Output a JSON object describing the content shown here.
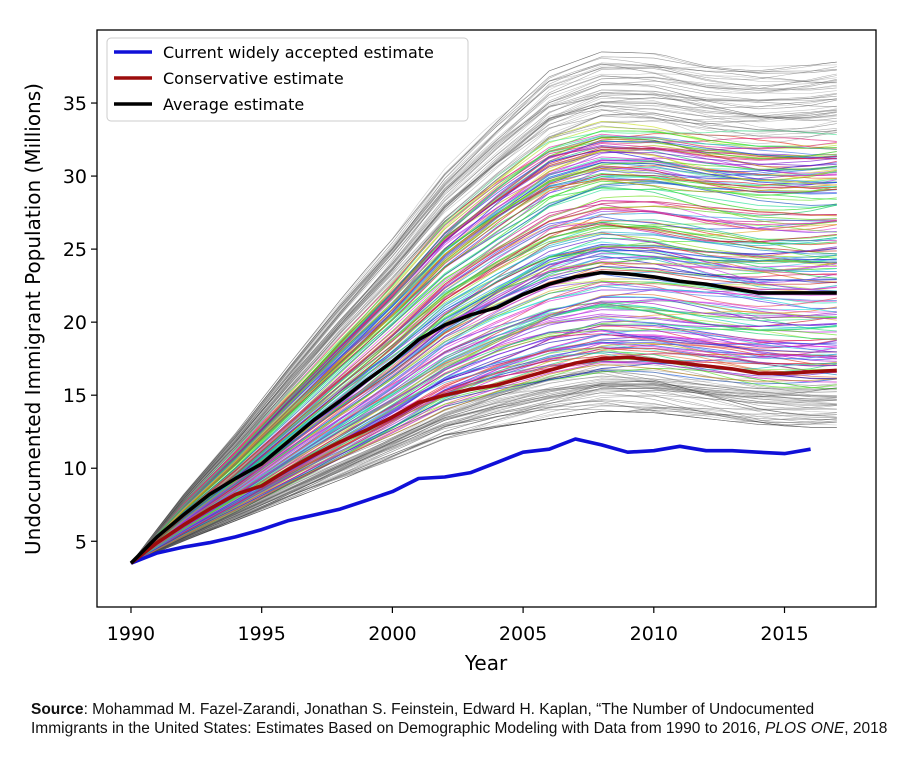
{
  "chart_data": {
    "type": "line",
    "xlabel": "Year",
    "ylabel": "Undocumented Immigrant Population (Millions)",
    "xlim": [
      1988.7,
      2018.5
    ],
    "ylim": [
      0.5,
      40
    ],
    "xticks": [
      1990,
      1995,
      2000,
      2005,
      2010,
      2015
    ],
    "yticks": [
      5,
      10,
      15,
      20,
      25,
      30,
      35
    ],
    "legend_position": "top-left",
    "grid": false,
    "simulation_band": {
      "description": "Hundreds of colored simulated trajectories",
      "x": [
        1990,
        1992,
        1994,
        1996,
        1998,
        2000,
        2002,
        2004,
        2006,
        2008,
        2010,
        2012,
        2014,
        2016,
        2017
      ],
      "lower": [
        3.5,
        5.0,
        6.4,
        7.8,
        9.2,
        10.6,
        12.0,
        12.8,
        13.4,
        13.9,
        13.8,
        13.4,
        13.0,
        12.8,
        12.8
      ],
      "upper": [
        3.5,
        8.2,
        12.4,
        17.0,
        21.5,
        25.8,
        30.5,
        34.0,
        37.2,
        38.5,
        38.4,
        37.8,
        37.5,
        37.6,
        37.8
      ]
    },
    "series": [
      {
        "name": "Current widely accepted estimate",
        "color": "#1010d8",
        "x": [
          1990,
          1991,
          1992,
          1993,
          1994,
          1995,
          1996,
          1997,
          1998,
          1999,
          2000,
          2001,
          2002,
          2003,
          2004,
          2005,
          2006,
          2007,
          2008,
          2009,
          2010,
          2011,
          2012,
          2013,
          2014,
          2015,
          2016
        ],
        "y": [
          3.5,
          4.2,
          4.6,
          4.9,
          5.3,
          5.8,
          6.4,
          6.8,
          7.2,
          7.8,
          8.4,
          9.3,
          9.4,
          9.7,
          10.4,
          11.1,
          11.3,
          12.0,
          11.6,
          11.1,
          11.2,
          11.5,
          11.2,
          11.2,
          11.1,
          11.0,
          11.3
        ]
      },
      {
        "name": "Conservative estimate",
        "color": "#9c0c0c",
        "x": [
          1990,
          1991,
          1992,
          1993,
          1994,
          1995,
          1996,
          1997,
          1998,
          1999,
          2000,
          2001,
          2002,
          2003,
          2004,
          2005,
          2006,
          2007,
          2008,
          2009,
          2010,
          2011,
          2012,
          2013,
          2014,
          2015,
          2016,
          2017
        ],
        "y": [
          3.5,
          4.9,
          6.1,
          7.2,
          8.2,
          8.8,
          9.9,
          10.9,
          11.8,
          12.6,
          13.5,
          14.5,
          15.0,
          15.4,
          15.7,
          16.2,
          16.7,
          17.2,
          17.5,
          17.6,
          17.4,
          17.2,
          17.0,
          16.8,
          16.5,
          16.5,
          16.6,
          16.7
        ]
      },
      {
        "name": "Average estimate",
        "color": "#000000",
        "x": [
          1990,
          1991,
          1992,
          1993,
          1994,
          1995,
          1996,
          1997,
          1998,
          1999,
          2000,
          2001,
          2002,
          2003,
          2004,
          2005,
          2006,
          2007,
          2008,
          2009,
          2010,
          2011,
          2012,
          2013,
          2014,
          2015,
          2016,
          2017
        ],
        "y": [
          3.5,
          5.3,
          6.8,
          8.2,
          9.3,
          10.3,
          11.8,
          13.3,
          14.6,
          16.0,
          17.3,
          18.8,
          19.8,
          20.5,
          21.0,
          21.9,
          22.6,
          23.1,
          23.4,
          23.3,
          23.1,
          22.8,
          22.6,
          22.3,
          22.0,
          22.0,
          22.0,
          22.0
        ]
      }
    ]
  },
  "source": {
    "label": "Source",
    "text_before": ": Mohammad M. Fazel-Zarandi, Jonathan S. Feinstein, Edward H. Kaplan, “The Number of Undocumented Immigrants in the United States: Estimates Based on Demographic Modeling with Data from 1990 to 2016, ",
    "journal": "PLOS ONE",
    "text_after": ", 2018"
  }
}
